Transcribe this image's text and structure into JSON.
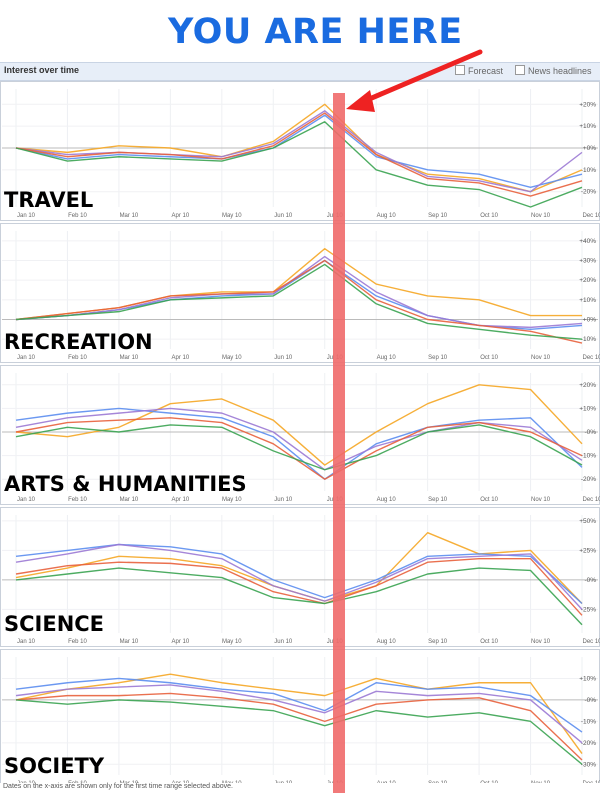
{
  "headline": "YOU ARE HERE",
  "toolbar": {
    "title": "Interest over time",
    "forecast_label": "Forecast",
    "news_label": "News headlines"
  },
  "footnote": "Dates on the x-axis are shown only for the first time range selected above.",
  "colors": {
    "orange": "#f5a623",
    "blue": "#5b8def",
    "purple": "#9b79d4",
    "red": "#e8603c",
    "green": "#3aa351",
    "marker": "#ee2222",
    "headline": "#1a6be0"
  },
  "months": [
    "Jan 10",
    "Feb 10",
    "Mar 10",
    "Apr 10",
    "May 10",
    "Jun 10",
    "Jul 10",
    "Aug 10",
    "Sep 10",
    "Oct 10",
    "Nov 10",
    "Dec 10"
  ],
  "chart_data": [
    {
      "type": "line",
      "title": "TRAVEL",
      "y_ticks": [
        "+20%",
        "+10%",
        "+0%",
        "-10%",
        "-20%"
      ],
      "y_tick_values": [
        20,
        10,
        0,
        -10,
        -20
      ],
      "ylim": [
        -27,
        27
      ],
      "x": [
        "Jan 10",
        "Feb 10",
        "Mar 10",
        "Apr 10",
        "May 10",
        "Jun 10",
        "Jul 10",
        "Aug 10",
        "Sep 10",
        "Oct 10",
        "Nov 10",
        "Dec 10"
      ],
      "series": [
        {
          "color": "orange",
          "values": [
            0,
            -2,
            1,
            0,
            -4,
            3,
            20,
            -3,
            -12,
            -14,
            -20,
            -10
          ]
        },
        {
          "color": "blue",
          "values": [
            0,
            -5,
            -3,
            -4,
            -5,
            0,
            15,
            -4,
            -10,
            -12,
            -18,
            -12
          ]
        },
        {
          "color": "purple",
          "values": [
            0,
            -3,
            -2,
            -3,
            -4,
            2,
            17,
            -2,
            -13,
            -15,
            -20,
            -2
          ]
        },
        {
          "color": "red",
          "values": [
            0,
            -4,
            -2,
            -3,
            -5,
            1,
            16,
            -3,
            -14,
            -16,
            -22,
            -15
          ]
        },
        {
          "color": "green",
          "values": [
            0,
            -6,
            -4,
            -5,
            -6,
            0,
            12,
            -10,
            -17,
            -19,
            -27,
            -18
          ]
        }
      ]
    },
    {
      "type": "line",
      "title": "RECREATION",
      "y_ticks": [
        "+40%",
        "+30%",
        "+20%",
        "+10%",
        "+0%",
        "-10%"
      ],
      "y_tick_values": [
        40,
        30,
        20,
        10,
        0,
        -10
      ],
      "ylim": [
        -15,
        45
      ],
      "x": [
        "Jan 10",
        "Feb 10",
        "Mar 10",
        "Apr 10",
        "May 10",
        "Jun 10",
        "Jul 10",
        "Aug 10",
        "Sep 10",
        "Oct 10",
        "Nov 10",
        "Dec 10"
      ],
      "series": [
        {
          "color": "orange",
          "values": [
            0,
            3,
            6,
            12,
            14,
            14,
            36,
            18,
            12,
            10,
            2,
            2
          ]
        },
        {
          "color": "blue",
          "values": [
            0,
            2,
            5,
            10,
            12,
            13,
            30,
            12,
            2,
            -3,
            -5,
            -3
          ]
        },
        {
          "color": "purple",
          "values": [
            0,
            2,
            5,
            11,
            13,
            13,
            32,
            14,
            2,
            -3,
            -4,
            -2
          ]
        },
        {
          "color": "red",
          "values": [
            0,
            3,
            6,
            12,
            13,
            14,
            30,
            10,
            0,
            -3,
            -6,
            -12
          ]
        },
        {
          "color": "green",
          "values": [
            0,
            2,
            4,
            10,
            11,
            12,
            28,
            8,
            -2,
            -5,
            -8,
            -10
          ]
        }
      ]
    },
    {
      "type": "line",
      "title": "ARTS & HUMANITIES",
      "y_ticks": [
        "+20%",
        "+10%",
        "-0%",
        "-10%",
        "-20%"
      ],
      "y_tick_values": [
        20,
        10,
        0,
        -10,
        -20
      ],
      "ylim": [
        -25,
        25
      ],
      "x": [
        "Jan 10",
        "Feb 10",
        "Mar 10",
        "Apr 10",
        "May 10",
        "Jun 10",
        "Jul 10",
        "Aug 10",
        "Sep 10",
        "Oct 10",
        "Nov 10",
        "Dec 10"
      ],
      "series": [
        {
          "color": "orange",
          "values": [
            0,
            -2,
            2,
            12,
            14,
            5,
            -14,
            0,
            12,
            20,
            18,
            -5
          ]
        },
        {
          "color": "blue",
          "values": [
            5,
            8,
            10,
            8,
            6,
            -2,
            -20,
            -5,
            2,
            5,
            6,
            -15
          ]
        },
        {
          "color": "purple",
          "values": [
            2,
            6,
            8,
            10,
            8,
            0,
            -16,
            -6,
            0,
            4,
            2,
            -12
          ]
        },
        {
          "color": "red",
          "values": [
            0,
            4,
            5,
            6,
            4,
            -5,
            -20,
            -8,
            2,
            4,
            0,
            -10
          ]
        },
        {
          "color": "green",
          "values": [
            -2,
            2,
            0,
            3,
            2,
            -8,
            -16,
            -10,
            0,
            3,
            -2,
            -14
          ]
        }
      ]
    },
    {
      "type": "line",
      "title": "SCIENCE",
      "y_ticks": [
        "+50%",
        "+25%",
        "-0%",
        "-25%"
      ],
      "y_tick_values": [
        50,
        25,
        0,
        -25
      ],
      "ylim": [
        -45,
        55
      ],
      "x": [
        "Jan 10",
        "Feb 10",
        "Mar 10",
        "Apr 10",
        "May 10",
        "Jun 10",
        "Jul 10",
        "Aug 10",
        "Sep 10",
        "Oct 10",
        "Nov 10",
        "Dec 10"
      ],
      "series": [
        {
          "color": "orange",
          "values": [
            2,
            10,
            20,
            18,
            12,
            -5,
            -18,
            -5,
            40,
            22,
            25,
            -20
          ]
        },
        {
          "color": "blue",
          "values": [
            20,
            25,
            30,
            28,
            22,
            0,
            -15,
            0,
            20,
            22,
            20,
            -20
          ]
        },
        {
          "color": "purple",
          "values": [
            15,
            22,
            30,
            25,
            18,
            -5,
            -18,
            -2,
            18,
            20,
            22,
            -25
          ]
        },
        {
          "color": "red",
          "values": [
            5,
            12,
            15,
            14,
            10,
            -10,
            -20,
            -5,
            15,
            18,
            18,
            -30
          ]
        },
        {
          "color": "green",
          "values": [
            0,
            5,
            10,
            6,
            2,
            -15,
            -20,
            -10,
            5,
            10,
            8,
            -38
          ]
        }
      ]
    },
    {
      "type": "line",
      "title": "SOCIETY",
      "y_ticks": [
        "+10%",
        "-0%",
        "-10%",
        "-20%",
        "-30%"
      ],
      "y_tick_values": [
        10,
        0,
        -10,
        -20,
        -30
      ],
      "ylim": [
        -35,
        20
      ],
      "x": [
        "Jan 10",
        "Feb 10",
        "Mar 10",
        "Apr 10",
        "May 10",
        "Jun 10",
        "Jul 10",
        "Aug 10",
        "Sep 10",
        "Oct 10",
        "Nov 10",
        "Dec 10"
      ],
      "series": [
        {
          "color": "orange",
          "values": [
            0,
            5,
            8,
            12,
            8,
            5,
            2,
            10,
            5,
            8,
            8,
            -25
          ]
        },
        {
          "color": "blue",
          "values": [
            5,
            8,
            10,
            8,
            5,
            3,
            -5,
            8,
            5,
            6,
            2,
            -15
          ]
        },
        {
          "color": "purple",
          "values": [
            2,
            5,
            6,
            7,
            4,
            0,
            -6,
            4,
            2,
            3,
            0,
            -20
          ]
        },
        {
          "color": "red",
          "values": [
            0,
            2,
            2,
            3,
            1,
            -2,
            -10,
            -2,
            0,
            1,
            -5,
            -28
          ]
        },
        {
          "color": "green",
          "values": [
            0,
            -2,
            0,
            -1,
            -3,
            -5,
            -12,
            -5,
            -8,
            -6,
            -10,
            -30
          ]
        }
      ]
    }
  ]
}
